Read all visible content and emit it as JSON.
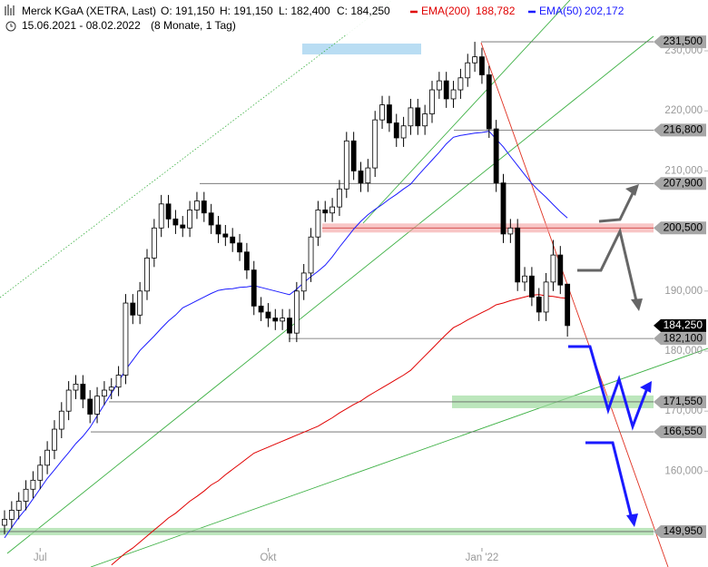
{
  "chart_data": {
    "type": "candlestick",
    "title": "Merck KGaA (XETRA, Last)",
    "header_stats": [
      "O: 191,150",
      "H: 191,150",
      "L: 182,400",
      "C: 184,250"
    ],
    "subtitle": "15.06.2021 - 08.02.2022",
    "period": "(8 Monate, 1 Tag)",
    "categories": [
      null,
      null,
      null,
      null,
      null,
      "Jul",
      null,
      null,
      null,
      null,
      null,
      null,
      null,
      null,
      null,
      null,
      null,
      null,
      null,
      null,
      null,
      null,
      null,
      null,
      null,
      null,
      null,
      null,
      null,
      null,
      null,
      null,
      null,
      null,
      null,
      null,
      null,
      "Okt",
      null,
      null,
      null,
      null,
      null,
      null,
      null,
      null,
      null,
      null,
      null,
      null,
      null,
      null,
      null,
      null,
      null,
      null,
      null,
      null,
      null,
      null,
      null,
      null,
      null,
      null,
      null,
      null,
      null,
      "Jan '22",
      null,
      null,
      null,
      null,
      null,
      null,
      null,
      null,
      null,
      null,
      null,
      null
    ],
    "open": [
      151000,
      152000,
      153500,
      155000,
      157000,
      158500,
      161000,
      163500,
      167000,
      170000,
      173500,
      174500,
      172000,
      169500,
      172500,
      173500,
      174000,
      176000,
      188000,
      186000,
      190000,
      195500,
      200500,
      204500,
      202000,
      201000,
      200500,
      203500,
      205000,
      203000,
      201000,
      199500,
      199000,
      198000,
      196500,
      193500,
      187500,
      186500,
      185500,
      185000,
      185500,
      183000,
      190000,
      193000,
      199000,
      203500,
      203000,
      204000,
      207000,
      215000,
      210000,
      208000,
      210500,
      218500,
      221000,
      218000,
      215500,
      217500,
      220500,
      217500,
      219500,
      223500,
      225000,
      222000,
      223500,
      225500,
      228000,
      229000,
      226000,
      217000,
      208000,
      199500,
      200500,
      191500,
      192500,
      189000,
      186500,
      191500,
      196000,
      191150
    ],
    "high": [
      153500,
      155000,
      156500,
      158500,
      160000,
      162500,
      165000,
      168500,
      171500,
      175000,
      176000,
      176000,
      173500,
      174000,
      175000,
      175500,
      177500,
      189500,
      189500,
      191500,
      197000,
      202000,
      206000,
      206000,
      203500,
      202500,
      205000,
      206500,
      206500,
      204500,
      202500,
      201000,
      200500,
      199500,
      198000,
      195000,
      189000,
      188000,
      187000,
      187000,
      187000,
      191500,
      194500,
      200500,
      205000,
      205000,
      205500,
      208500,
      216500,
      216500,
      211500,
      212000,
      220000,
      222500,
      222500,
      219500,
      219000,
      222000,
      222000,
      221000,
      225000,
      226500,
      226500,
      225000,
      227000,
      229500,
      231500,
      230500,
      227500,
      218500,
      209500,
      202000,
      202000,
      194000,
      194000,
      190500,
      193000,
      198500,
      197500,
      191150
    ],
    "low": [
      149500,
      150500,
      152000,
      153500,
      155500,
      157000,
      159500,
      162000,
      165500,
      168500,
      172000,
      170500,
      168000,
      168000,
      171000,
      172000,
      172500,
      174500,
      184500,
      184500,
      188500,
      194000,
      199000,
      200500,
      199500,
      199000,
      199000,
      202000,
      201500,
      199500,
      198000,
      197500,
      196500,
      195000,
      192000,
      186000,
      185000,
      184000,
      183500,
      183500,
      181500,
      181500,
      188500,
      191500,
      197500,
      201500,
      201500,
      202500,
      205500,
      208500,
      206500,
      206500,
      209000,
      217000,
      216500,
      214000,
      214000,
      216000,
      216000,
      216000,
      218000,
      222000,
      220500,
      220500,
      222000,
      224000,
      226500,
      224500,
      215500,
      206500,
      198000,
      198000,
      190000,
      190000,
      187500,
      185000,
      185000,
      190000,
      189500,
      182400
    ],
    "close": [
      152000,
      153500,
      155000,
      157000,
      158500,
      161000,
      163500,
      167000,
      170000,
      173500,
      174500,
      172000,
      169500,
      172500,
      173500,
      174000,
      176000,
      188000,
      186000,
      190000,
      195500,
      200500,
      204500,
      202000,
      201000,
      200500,
      203500,
      205000,
      203000,
      201000,
      199500,
      199000,
      198000,
      196500,
      193500,
      187500,
      186500,
      185500,
      185000,
      185500,
      183000,
      190000,
      193000,
      199000,
      203500,
      203000,
      204000,
      207000,
      215000,
      210000,
      208000,
      210500,
      218500,
      221000,
      218000,
      215500,
      217500,
      220500,
      217500,
      219500,
      223500,
      225000,
      222000,
      223500,
      225500,
      228000,
      229000,
      226000,
      217000,
      208000,
      199500,
      200500,
      191500,
      192500,
      189000,
      186500,
      191500,
      196000,
      191000,
      184250
    ],
    "series": [
      {
        "name": "EMA(200)",
        "color": "#e00000",
        "value_label": "188,782",
        "values": [
          null,
          null,
          null,
          null,
          null,
          null,
          null,
          null,
          null,
          null,
          null,
          null,
          null,
          null,
          null,
          144400,
          145400,
          146400,
          147200,
          148200,
          149200,
          150200,
          151200,
          152200,
          153000,
          154000,
          155000,
          155800,
          156700,
          157700,
          158400,
          159400,
          160300,
          161200,
          162100,
          163000,
          163500,
          164000,
          164500,
          165000,
          165500,
          166000,
          166500,
          167000,
          167500,
          168200,
          168900,
          169700,
          170400,
          171100,
          171700,
          172500,
          173200,
          173900,
          174600,
          175300,
          176000,
          176800,
          178000,
          179200,
          180400,
          181600,
          182800,
          183900,
          184500,
          185200,
          185800,
          186400,
          187000,
          187700,
          188000,
          188400,
          188700,
          189000,
          189300,
          189400,
          189200,
          189100,
          188900,
          188782
        ]
      },
      {
        "name": "EMA(50)",
        "color": "#1a1aff",
        "value_label": "202,172",
        "values": [
          148900,
          150600,
          152300,
          153700,
          155400,
          157100,
          158800,
          160200,
          161700,
          163100,
          164600,
          165800,
          167300,
          169200,
          171100,
          173000,
          174900,
          176900,
          178500,
          180100,
          181300,
          182500,
          183800,
          185000,
          186000,
          187200,
          187800,
          188400,
          189000,
          189600,
          190100,
          190300,
          190400,
          190600,
          190700,
          190900,
          190600,
          190300,
          190000,
          189700,
          189400,
          190300,
          191400,
          192400,
          193300,
          194300,
          195700,
          197300,
          198800,
          200300,
          201600,
          202700,
          203600,
          204400,
          205300,
          206100,
          207000,
          207800,
          209200,
          210500,
          211800,
          213100,
          214500,
          215600,
          215900,
          216100,
          216300,
          216400,
          216600,
          215300,
          214000,
          212400,
          210900,
          209400,
          207900,
          206700,
          205600,
          204400,
          203200,
          202172
        ]
      }
    ],
    "ylim": [
      144050,
      238460
    ],
    "yticks": [
      {
        "value": 160000,
        "label": "160,000"
      },
      {
        "value": 170000,
        "label": "170,000"
      },
      {
        "value": 180000,
        "label": "180,000"
      },
      {
        "value": 190000,
        "label": "190,000"
      },
      {
        "value": 210000,
        "label": "210,000"
      },
      {
        "value": 220000,
        "label": "220,000"
      },
      {
        "value": 230000,
        "label": "230,000"
      }
    ],
    "levels": [
      {
        "value": 231500,
        "label": "231,500"
      },
      {
        "value": 216800,
        "label": "216,800"
      },
      {
        "value": 207900,
        "label": "207,900"
      },
      {
        "value": 200500,
        "label": "200,500"
      },
      {
        "value": 182100,
        "label": "182,100"
      },
      {
        "value": 171550,
        "label": "171,550"
      },
      {
        "value": 166550,
        "label": "166,550"
      },
      {
        "value": 149950,
        "label": "149,950"
      }
    ],
    "price_tag": {
      "value": 184250,
      "label": "184,250"
    }
  }
}
